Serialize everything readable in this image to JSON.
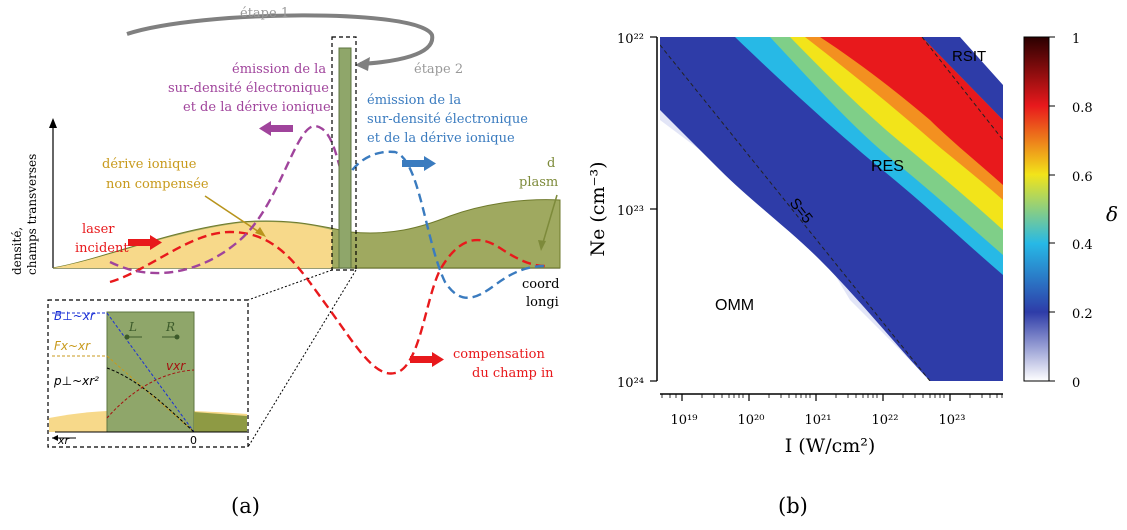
{
  "panel_a": {
    "label": "(a)",
    "step1": "étape 1",
    "step2": "étape 2",
    "emission_left": [
      "émission de la",
      "sur-densité électronique",
      "et de la dérive ionique"
    ],
    "emission_right": [
      "émission de la",
      "sur-densité électronique",
      "et de la dérive ionique"
    ],
    "drift": [
      "dérive ionique",
      "non compensée"
    ],
    "laser": [
      "laser",
      "incident"
    ],
    "plasma": [
      "d",
      "plasm"
    ],
    "coord": [
      "coord",
      "longi"
    ],
    "compensation": [
      "compensation",
      "du champ in"
    ],
    "yaxis": [
      "densité,",
      "champs transverses"
    ],
    "inset": {
      "B": "B⊥~xr",
      "F": "Fx~xr",
      "p": "p⊥~xr²",
      "v": "vxr",
      "L": "L",
      "R": "R",
      "xr": "xr",
      "zero": "0"
    },
    "colors": {
      "magenta": "#a0449c",
      "blue": "#3a7bbf",
      "red": "#e8191c",
      "olive": "#7d8a3a",
      "gold": "#c89a1c",
      "plasma_fill": "#8e9a44",
      "drift_fill": "#f7d98a",
      "grey": "#777777"
    }
  },
  "panel_b": {
    "label": "(b)",
    "regions": {
      "rsit": "RSIT",
      "res": "RES",
      "omm": "OMM",
      "s5": "S=5"
    },
    "colorbar": {
      "label": "δ",
      "ticks": [
        "0",
        "0.2",
        "0.4",
        "0.6",
        "0.8",
        "1"
      ]
    }
  },
  "chart_data": {
    "type": "heatmap",
    "xlabel": "I (W/cm²)",
    "ylabel": "Ne (cm⁻³)",
    "xscale": "log",
    "yscale": "log",
    "x_ticks": [
      "10¹⁹",
      "10²⁰",
      "10²¹",
      "10²²",
      "10²³"
    ],
    "y_ticks": [
      "10²²",
      "10²³",
      "10²⁴"
    ],
    "xlim": [
      3.5e+18,
      4e+23
    ],
    "ylim": [
      1e+24,
      1e+22
    ],
    "zlim": [
      0,
      1
    ],
    "colormap": [
      "#ffffff",
      "#2e3ca8",
      "#27b9e6",
      "#f2e41a",
      "#e8191c",
      "#2b0000"
    ],
    "regions": [
      "OMM",
      "RES",
      "RSIT"
    ],
    "annotations": [
      "S=5"
    ]
  }
}
